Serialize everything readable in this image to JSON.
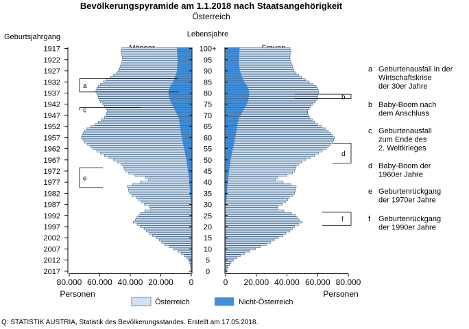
{
  "chart_data": {
    "type": "bar",
    "title": "Bevölkerungspyramide am 1.1.2018 nach Staatsangehörigkeit",
    "subtitle": "Österreich",
    "left_axis_title": "Geburtsjahrgang",
    "center_axis_title": "Lebensjahre",
    "left_panel_label": "Männer",
    "right_panel_label": "Frauen",
    "xlabel_left": "Personen",
    "xlabel_right": "Personen",
    "x_ticks_left": [
      "80.000",
      "60.000",
      "40.000",
      "20.000",
      "0"
    ],
    "x_ticks_right": [
      "0",
      "20.000",
      "40.000",
      "60.000",
      "80.000"
    ],
    "xlim": [
      0,
      80000
    ],
    "birth_year_labels": [
      "1917",
      "1922",
      "1927",
      "1932",
      "1937",
      "1942",
      "1947",
      "1952",
      "1957",
      "1962",
      "1967",
      "1972",
      "1977",
      "1982",
      "1987",
      "1992",
      "1997",
      "2002",
      "2007",
      "2012",
      "2017"
    ],
    "age_labels": [
      "100+",
      "95",
      "90",
      "85",
      "80",
      "75",
      "70",
      "65",
      "60",
      "55",
      "50",
      "45",
      "40",
      "35",
      "30",
      "25",
      "20",
      "15",
      "10",
      "5",
      "0"
    ],
    "legend": [
      {
        "name": "Österreich",
        "color": "#cfe2f3"
      },
      {
        "name": "Nicht-Österreich",
        "color": "#3d8fdc"
      }
    ],
    "bar_outline_color": "#2b4a6e",
    "male_total": [
      180,
      290,
      470,
      720,
      1060,
      1720,
      2900,
      4550,
      6550,
      8900,
      11700,
      14600,
      17500,
      19500,
      21000,
      23000,
      25500,
      27500,
      29500,
      31000,
      33500,
      35500,
      38000,
      36800,
      35800,
      34500,
      33300,
      30500,
      26600,
      27600,
      30700,
      32800,
      34600,
      35900,
      39000,
      40500,
      41000,
      41100,
      42000,
      38500,
      33500,
      28000,
      30000,
      37000,
      41000,
      43000,
      44000,
      44500,
      46000,
      48500,
      51000,
      54000,
      57000,
      59500,
      62000,
      64500,
      66000,
      68000,
      70000,
      71000,
      72000,
      71500,
      71000,
      70000,
      68500,
      66000,
      63000,
      61000,
      59000,
      57000,
      56000,
      55500,
      55000,
      56000,
      57000,
      58000,
      59500,
      60500,
      61000,
      61500,
      62000,
      62500,
      62000,
      61000,
      59500,
      57500,
      55500,
      53000,
      51000,
      49000,
      48000,
      47000,
      46500,
      46000,
      45500,
      45000,
      45200,
      45500,
      45800,
      46000,
      45500,
      45000
    ],
    "male_foreign": [
      0,
      0,
      0,
      0,
      0,
      0,
      0,
      0,
      0,
      0,
      0,
      0,
      0,
      0,
      0,
      0,
      0,
      0,
      0,
      0,
      0,
      0,
      0,
      0,
      0,
      0,
      0,
      0,
      0,
      0,
      0,
      0,
      500,
      600,
      700,
      800,
      900,
      1000,
      1100,
      1200,
      1300,
      1450,
      1600,
      1800,
      2000,
      2200,
      2400,
      2600,
      2800,
      3000,
      3200,
      3500,
      3800,
      4100,
      4400,
      4700,
      5000,
      5300,
      5600,
      5900,
      6200,
      6500,
      6800,
      7000,
      7200,
      7400,
      7600,
      7800,
      8000,
      8400,
      9000,
      9800,
      10500,
      11200,
      12000,
      12800,
      13500,
      14000,
      14500,
      14800,
      15000,
      14800,
      14300,
      13800,
      13000,
      12000,
      11300,
      10800,
      10300,
      9800,
      9500,
      9300,
      9200,
      9100,
      9000,
      9000,
      9100,
      9200,
      9300,
      9400,
      9400,
      9300
    ],
    "female_total": [
      600,
      1000,
      1700,
      2600,
      3600,
      5100,
      7300,
      9600,
      12300,
      15600,
      19400,
      22800,
      26500,
      29300,
      31800,
      34300,
      37300,
      39300,
      42000,
      43500,
      45000,
      47500,
      49800,
      48000,
      47000,
      45500,
      43000,
      38000,
      34000,
      34000,
      37000,
      39000,
      40500,
      41500,
      44000,
      45000,
      45500,
      45500,
      46000,
      42500,
      37500,
      32500,
      34000,
      40000,
      43500,
      45000,
      45500,
      46000,
      47500,
      49500,
      52000,
      55000,
      58000,
      60500,
      63000,
      65500,
      67000,
      68500,
      70000,
      70500,
      71000,
      70000,
      68500,
      67000,
      65000,
      62500,
      60000,
      58000,
      56500,
      55000,
      54000,
      53500,
      53500,
      54500,
      55500,
      57000,
      58500,
      59500,
      60000,
      60000,
      60500,
      60500,
      60000,
      59000,
      57000,
      54500,
      52000,
      49500,
      47500,
      46000,
      44500,
      44000,
      43500,
      43000,
      42500,
      42000,
      42000,
      42000,
      42500,
      42500,
      42000,
      41500
    ],
    "female_foreign": [
      0,
      0,
      0,
      0,
      0,
      0,
      0,
      0,
      0,
      0,
      0,
      0,
      0,
      0,
      0,
      0,
      0,
      0,
      0,
      0,
      0,
      0,
      0,
      0,
      0,
      0,
      0,
      0,
      0,
      0,
      0,
      0,
      600,
      700,
      800,
      900,
      1000,
      1100,
      1200,
      1300,
      1400,
      1550,
      1700,
      1900,
      2100,
      2300,
      2500,
      2700,
      2900,
      3100,
      3300,
      3600,
      3900,
      4200,
      4500,
      4800,
      5100,
      5400,
      5700,
      6000,
      6300,
      6600,
      6900,
      7100,
      7300,
      7500,
      7800,
      8100,
      8500,
      9000,
      9800,
      10600,
      11400,
      12200,
      13000,
      13700,
      14300,
      14800,
      15100,
      15300,
      15400,
      15200,
      14800,
      14200,
      13300,
      12300,
      11500,
      10900,
      10300,
      9800,
      9400,
      9100,
      8900,
      8800,
      8700,
      8700,
      8800,
      8900,
      9000,
      9100,
      9100,
      9000
    ],
    "annotations": [
      {
        "letter": "a",
        "text": [
          "Geburtenausfall in der",
          "Wirtschaftskrise",
          "der  30er Jahre"
        ],
        "side": "male",
        "age_from": 81,
        "age_to": 86
      },
      {
        "letter": "b",
        "text": [
          "Baby-Boom nach",
          "dem Anschluss"
        ],
        "side": "female",
        "age_from": 78,
        "age_to": 79
      },
      {
        "letter": "c",
        "text": [
          "Geburtenausfall",
          "zum Ende des",
          "2. Weltkrieges"
        ],
        "side": "male",
        "age_from": 72,
        "age_to": 73
      },
      {
        "letter": "d",
        "text": [
          "Baby-Boom der",
          "1960er Jahre"
        ],
        "side": "female",
        "age_from": 49,
        "age_to": 57
      },
      {
        "letter": "e",
        "text": [
          "Geburtenrückgang",
          "der 1970er Jahre"
        ],
        "side": "male",
        "age_from": 38,
        "age_to": 46
      },
      {
        "letter": "f",
        "text": [
          "Geburtenrückgang",
          "der 1990er Jahre"
        ],
        "side": "female",
        "age_from": 21,
        "age_to": 26
      }
    ],
    "grid": false
  },
  "source": "Q: STATISTIK AUSTRIA, Statistik des Bevölkerungsstandes. Erstellt am 17.05.2018."
}
